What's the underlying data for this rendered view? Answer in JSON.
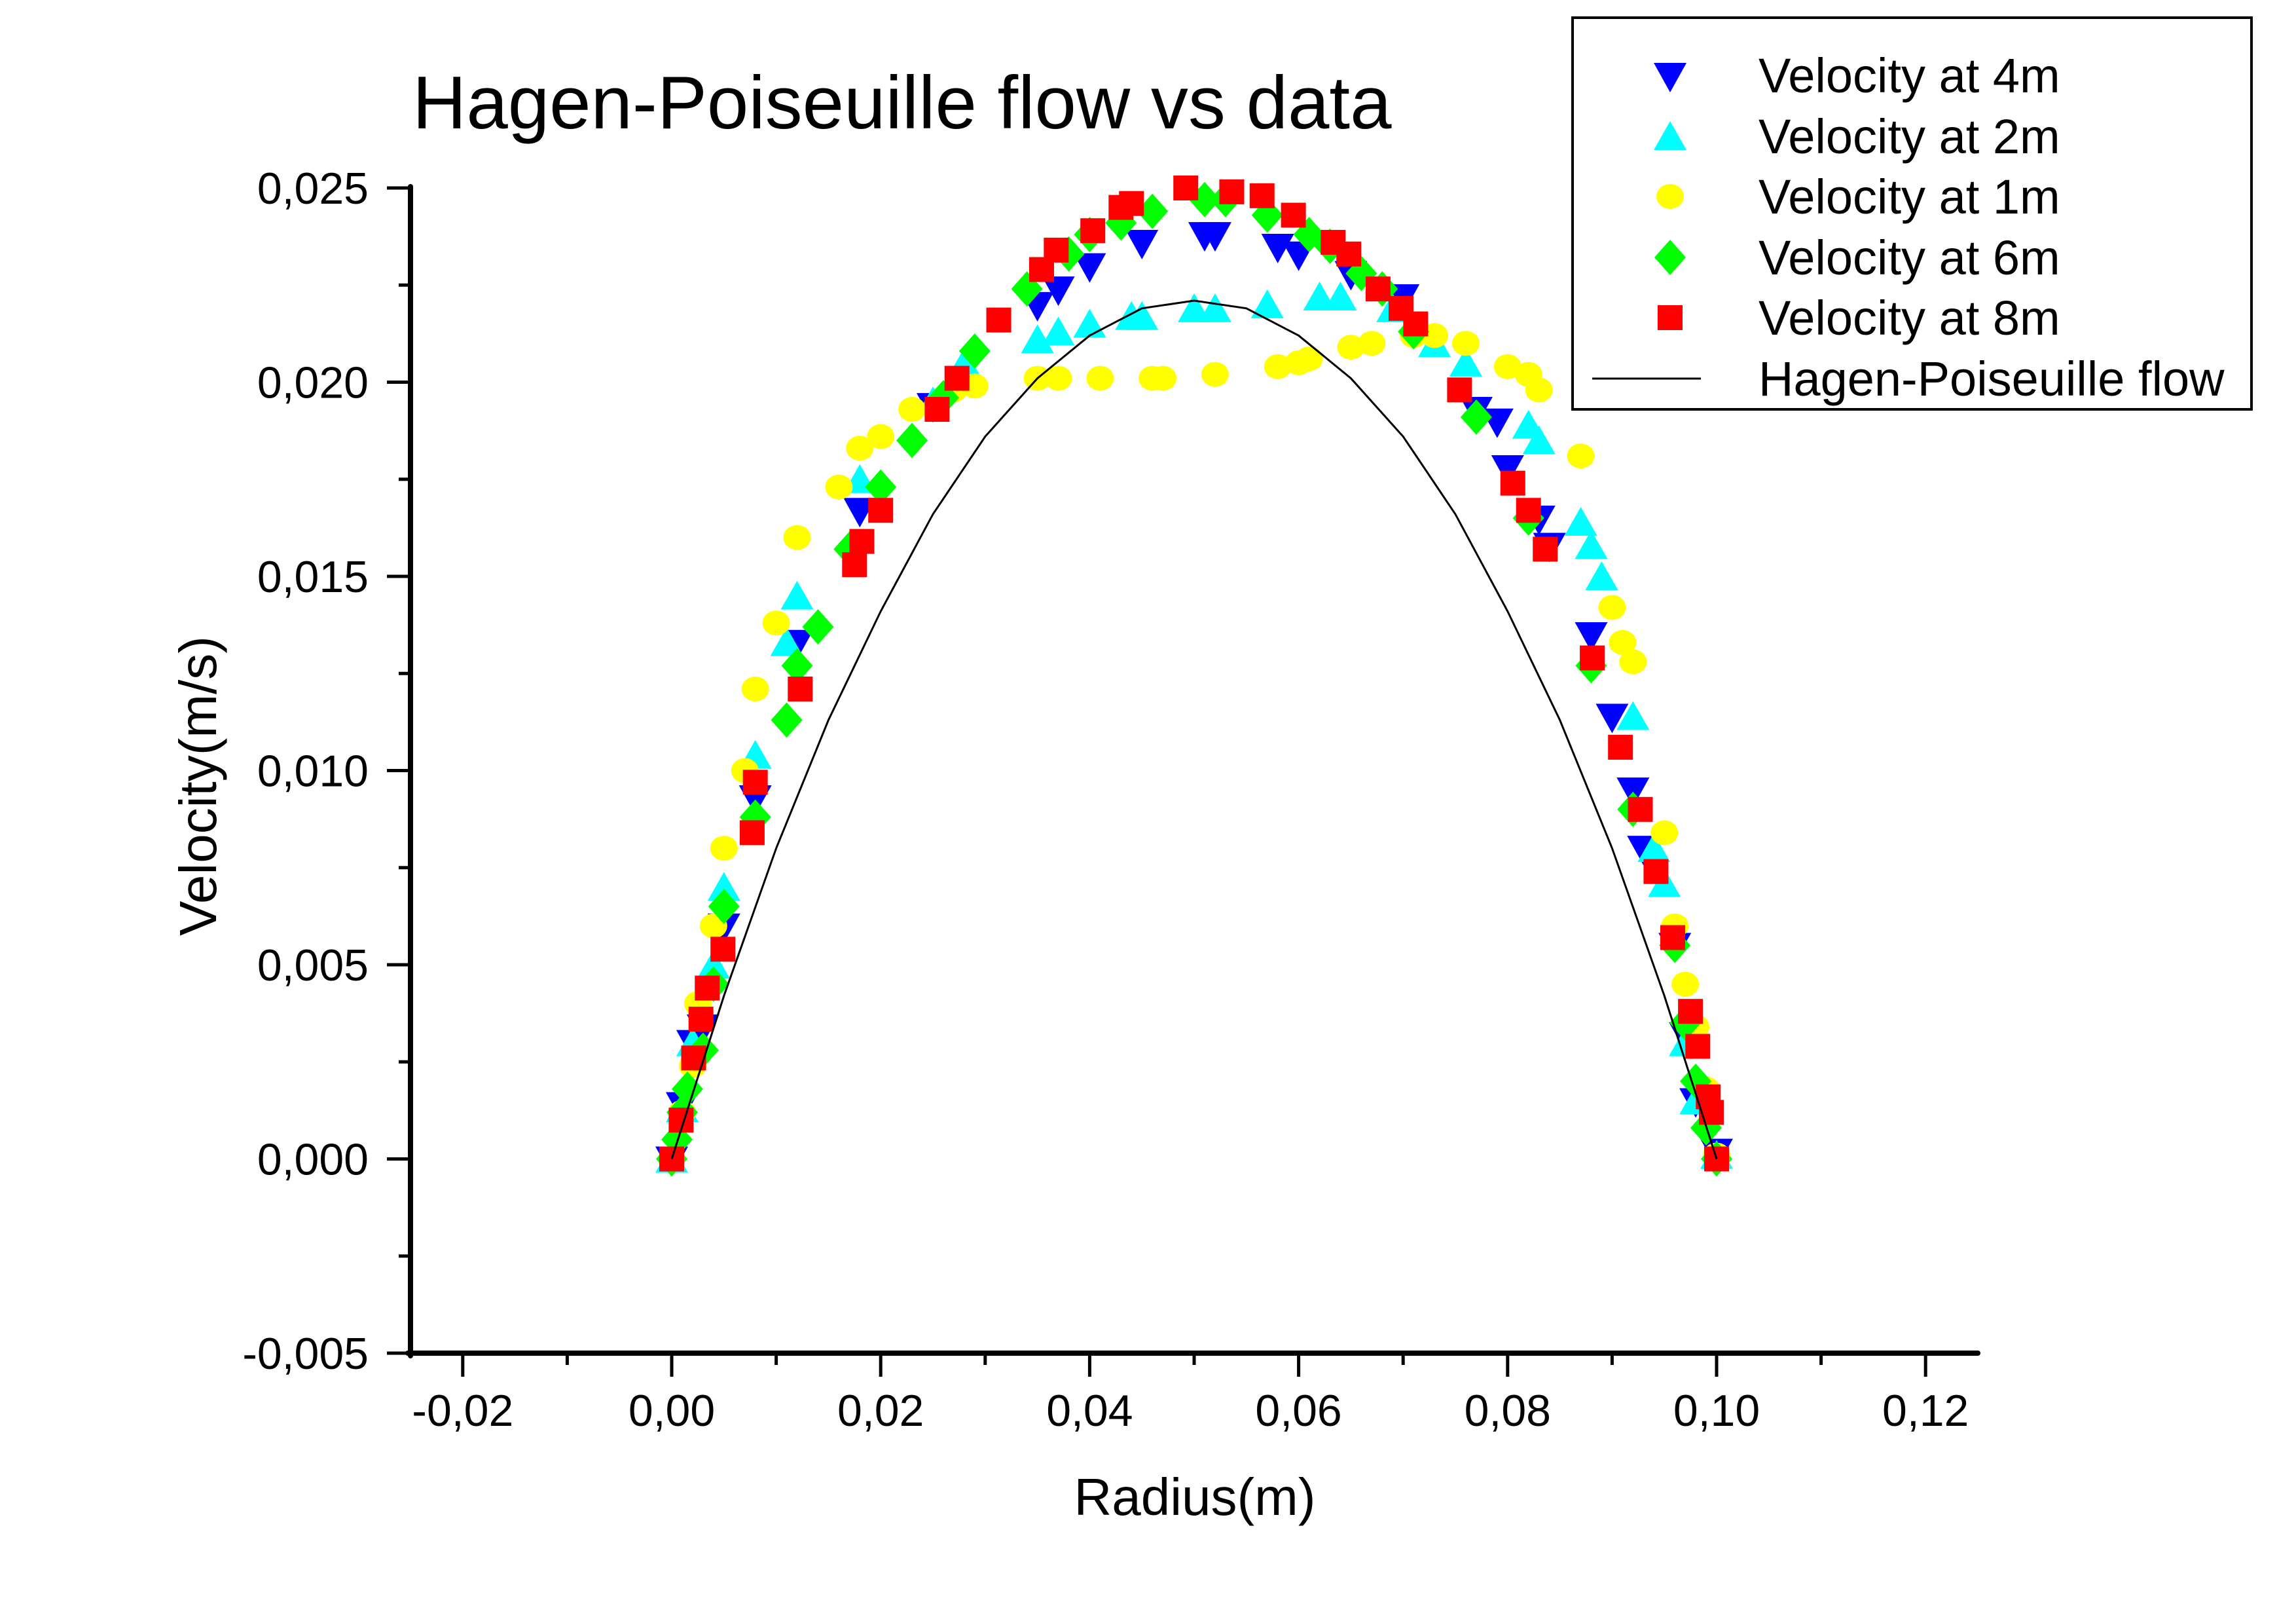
{
  "chart_data": {
    "type": "scatter",
    "title": "Hagen-Poiseuille flow vs data",
    "xlabel": "Radius(m)",
    "ylabel": "Velocity(m/s)",
    "xlim": [
      -0.025,
      0.125
    ],
    "ylim": [
      -0.005,
      0.025
    ],
    "grid": false,
    "legend_position": "top-right",
    "x_ticks": [
      -0.02,
      0.0,
      0.02,
      0.04,
      0.06,
      0.08,
      0.1,
      0.12
    ],
    "x_tick_labels": [
      "-0,02",
      "0,00",
      "0,02",
      "0,04",
      "0,06",
      "0,08",
      "0,10",
      "0,12"
    ],
    "x_minor_ticks": [
      -0.01,
      0.01,
      0.03,
      0.05,
      0.07,
      0.09,
      0.11
    ],
    "y_ticks": [
      -0.005,
      0.0,
      0.005,
      0.01,
      0.015,
      0.02,
      0.025
    ],
    "y_tick_labels": [
      "-0,005",
      "0,000",
      "0,005",
      "0,010",
      "0,015",
      "0,020",
      "0,025"
    ],
    "y_minor_ticks": [
      -0.0025,
      0.0025,
      0.0075,
      0.0125,
      0.0175,
      0.0225
    ],
    "series": [
      {
        "name": "Velocity at 4m",
        "marker": "triangle-down",
        "color": "#0000ff",
        "x": [
          0.0,
          0.001,
          0.002,
          0.003,
          0.005,
          0.008,
          0.012,
          0.018,
          0.025,
          0.035,
          0.037,
          0.04,
          0.045,
          0.051,
          0.052,
          0.058,
          0.06,
          0.065,
          0.07,
          0.077,
          0.079,
          0.08,
          0.083,
          0.084,
          0.088,
          0.09,
          0.092,
          0.093,
          0.096,
          0.097,
          0.098,
          0.1
        ],
        "y": [
          0.0,
          0.0014,
          0.003,
          0.0034,
          0.006,
          0.0093,
          0.0133,
          0.0167,
          0.0194,
          0.022,
          0.0224,
          0.023,
          0.0236,
          0.0238,
          0.0238,
          0.0235,
          0.0233,
          0.0228,
          0.0222,
          0.0193,
          0.019,
          0.0178,
          0.0165,
          0.0158,
          0.0135,
          0.0114,
          0.0095,
          0.008,
          0.0055,
          0.0032,
          0.0015,
          0.0002
        ]
      },
      {
        "name": "Velocity at 2m",
        "marker": "triangle-up",
        "color": "#00ffff",
        "x": [
          0.0,
          0.001,
          0.002,
          0.004,
          0.005,
          0.008,
          0.011,
          0.012,
          0.018,
          0.025,
          0.028,
          0.035,
          0.037,
          0.04,
          0.044,
          0.045,
          0.05,
          0.052,
          0.057,
          0.062,
          0.064,
          0.069,
          0.073,
          0.076,
          0.082,
          0.083,
          0.087,
          0.088,
          0.089,
          0.092,
          0.094,
          0.095,
          0.097,
          0.098,
          0.1
        ],
        "y": [
          0.0,
          0.0013,
          0.003,
          0.005,
          0.007,
          0.0104,
          0.0133,
          0.0145,
          0.0175,
          0.0195,
          0.0205,
          0.0211,
          0.0213,
          0.0215,
          0.0217,
          0.0217,
          0.0219,
          0.0219,
          0.022,
          0.0222,
          0.0222,
          0.0219,
          0.021,
          0.0205,
          0.0189,
          0.0185,
          0.0164,
          0.0158,
          0.015,
          0.0114,
          0.008,
          0.0071,
          0.003,
          0.0015,
          0.0001
        ]
      },
      {
        "name": "Velocity at 1m",
        "marker": "circle",
        "color": "#ffff00",
        "x": [
          0.0,
          0.001,
          0.002,
          0.0025,
          0.004,
          0.005,
          0.007,
          0.008,
          0.01,
          0.012,
          0.016,
          0.018,
          0.02,
          0.023,
          0.027,
          0.029,
          0.035,
          0.037,
          0.041,
          0.046,
          0.047,
          0.052,
          0.058,
          0.06,
          0.061,
          0.065,
          0.067,
          0.071,
          0.073,
          0.076,
          0.08,
          0.082,
          0.083,
          0.087,
          0.09,
          0.091,
          0.092,
          0.095,
          0.096,
          0.097,
          0.098,
          0.099,
          0.1
        ],
        "y": [
          0.0,
          0.0012,
          0.0024,
          0.004,
          0.006,
          0.008,
          0.01,
          0.0121,
          0.0138,
          0.016,
          0.0173,
          0.0183,
          0.0186,
          0.0193,
          0.0198,
          0.0199,
          0.0201,
          0.0201,
          0.0201,
          0.0201,
          0.0201,
          0.0202,
          0.0204,
          0.0205,
          0.0206,
          0.0209,
          0.021,
          0.0212,
          0.0212,
          0.021,
          0.0204,
          0.0202,
          0.0198,
          0.0181,
          0.0142,
          0.0133,
          0.0128,
          0.0084,
          0.006,
          0.0045,
          0.0034,
          0.0018,
          0.0001
        ]
      },
      {
        "name": "Velocity at 6m",
        "marker": "diamond",
        "color": "#00ff00",
        "x": [
          0.0,
          0.0005,
          0.001,
          0.0015,
          0.003,
          0.004,
          0.005,
          0.008,
          0.011,
          0.012,
          0.014,
          0.017,
          0.02,
          0.023,
          0.026,
          0.029,
          0.034,
          0.038,
          0.04,
          0.043,
          0.046,
          0.051,
          0.053,
          0.057,
          0.061,
          0.063,
          0.066,
          0.068,
          0.071,
          0.077,
          0.082,
          0.088,
          0.092,
          0.096,
          0.097,
          0.098,
          0.099,
          0.1
        ],
        "y": [
          0.0,
          0.0005,
          0.0012,
          0.0018,
          0.0028,
          0.0045,
          0.0065,
          0.0088,
          0.0113,
          0.0127,
          0.0137,
          0.0157,
          0.0173,
          0.0185,
          0.0196,
          0.0208,
          0.0224,
          0.0233,
          0.0238,
          0.0241,
          0.0244,
          0.0247,
          0.0247,
          0.0243,
          0.0238,
          0.0235,
          0.0228,
          0.0224,
          0.0213,
          0.0191,
          0.0165,
          0.0127,
          0.009,
          0.0055,
          0.0035,
          0.002,
          0.0008,
          0.0
        ]
      },
      {
        "name": "Velocity at 8m",
        "marker": "square",
        "color": "#ff0000",
        "x": [
          0.0,
          0.0009,
          0.0021,
          0.0028,
          0.0034,
          0.0049,
          0.0077,
          0.008,
          0.0123,
          0.0175,
          0.0182,
          0.02,
          0.0254,
          0.0273,
          0.0313,
          0.0354,
          0.0368,
          0.0403,
          0.043,
          0.044,
          0.0492,
          0.0536,
          0.0565,
          0.0595,
          0.0633,
          0.0648,
          0.0676,
          0.0698,
          0.0712,
          0.0754,
          0.0805,
          0.082,
          0.0836,
          0.0881,
          0.0908,
          0.0927,
          0.0942,
          0.0958,
          0.0975,
          0.0982,
          0.0992,
          0.0995,
          0.1
        ],
        "y": [
          0.0,
          0.001,
          0.0026,
          0.0036,
          0.0044,
          0.0054,
          0.0084,
          0.0097,
          0.0121,
          0.0153,
          0.0159,
          0.0167,
          0.0193,
          0.0201,
          0.0216,
          0.0229,
          0.0234,
          0.0239,
          0.0245,
          0.0246,
          0.025,
          0.0249,
          0.0248,
          0.0243,
          0.0236,
          0.0233,
          0.0224,
          0.0219,
          0.0215,
          0.0198,
          0.0174,
          0.0167,
          0.0157,
          0.0129,
          0.0106,
          0.009,
          0.0074,
          0.0057,
          0.0038,
          0.0029,
          0.0016,
          0.0012,
          0.0
        ]
      },
      {
        "name": "Hagen-Poiseuille flow",
        "marker": "line",
        "color": "#000000",
        "x": [
          0.0,
          0.005,
          0.01,
          0.015,
          0.02,
          0.025,
          0.03,
          0.035,
          0.04,
          0.045,
          0.05,
          0.055,
          0.06,
          0.065,
          0.07,
          0.075,
          0.08,
          0.085,
          0.09,
          0.095,
          0.1
        ],
        "y": [
          0.0,
          0.0042,
          0.008,
          0.0113,
          0.0141,
          0.0166,
          0.0186,
          0.0201,
          0.0212,
          0.0219,
          0.0221,
          0.0219,
          0.0212,
          0.0201,
          0.0186,
          0.0166,
          0.0141,
          0.0113,
          0.008,
          0.0042,
          0.0
        ]
      }
    ]
  }
}
